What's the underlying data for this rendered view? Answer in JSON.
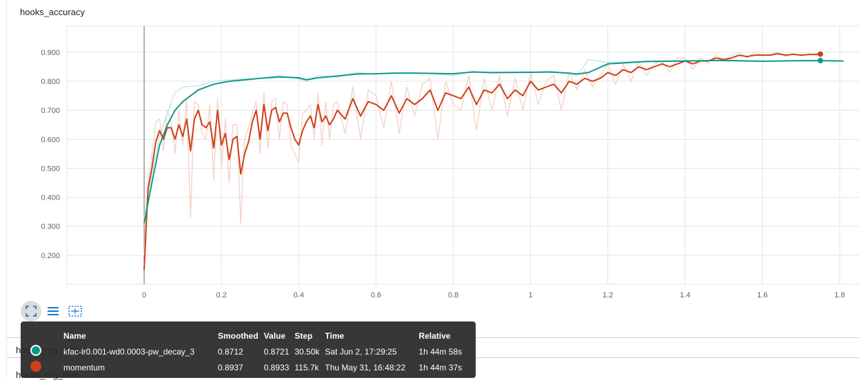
{
  "card": {
    "title": "hooks_accuracy"
  },
  "colors": {
    "series_a": "#0d9a89",
    "series_a_raw": "#c5e8e2",
    "series_b": "#cf3f1a",
    "series_b_raw": "#f3d6cc",
    "grid": "#e3e3e3",
    "axis": "#7f7f7f"
  },
  "chart_data": {
    "type": "line",
    "x_ticks": [
      "0",
      "0.2",
      "0.4",
      "0.6",
      "0.8",
      "1",
      "1.2",
      "1.4",
      "1.6",
      "1.8"
    ],
    "y_ticks": [
      "0.200",
      "0.300",
      "0.400",
      "0.500",
      "0.600",
      "0.700",
      "0.800",
      "0.900"
    ],
    "xlim": [
      -0.2,
      1.85
    ],
    "ylim": [
      0.1,
      0.99
    ],
    "grid": true,
    "series": [
      {
        "name": "kfac-lr0.001-wd0.0003-pw_decay_3",
        "x": [
          0,
          0.02,
          0.04,
          0.06,
          0.08,
          0.1,
          0.14,
          0.18,
          0.22,
          0.3,
          0.35,
          0.4,
          0.42,
          0.45,
          0.5,
          0.55,
          0.6,
          0.65,
          0.7,
          0.8,
          0.85,
          0.9,
          1.0,
          1.05,
          1.1,
          1.12,
          1.15,
          1.2,
          1.3,
          1.4,
          1.5,
          1.6,
          1.7,
          1.75,
          1.81
        ],
        "y": [
          0.31,
          0.45,
          0.58,
          0.65,
          0.7,
          0.73,
          0.77,
          0.79,
          0.8,
          0.81,
          0.815,
          0.812,
          0.805,
          0.812,
          0.818,
          0.825,
          0.826,
          0.828,
          0.828,
          0.826,
          0.832,
          0.83,
          0.831,
          0.832,
          0.828,
          0.825,
          0.83,
          0.86,
          0.868,
          0.87,
          0.872,
          0.869,
          0.871,
          0.8712,
          0.87
        ],
        "raw_y": [
          0.33,
          0.48,
          0.61,
          0.69,
          0.76,
          0.78,
          0.785,
          0.8,
          0.805,
          0.81,
          0.82,
          0.808,
          0.8,
          0.82,
          0.815,
          0.83,
          0.825,
          0.83,
          0.83,
          0.82,
          0.835,
          0.828,
          0.83,
          0.835,
          0.826,
          0.82,
          0.875,
          0.865,
          0.87,
          0.872,
          0.87,
          0.868,
          0.872,
          0.8721,
          0.87
        ],
        "smoothed": 0.8712,
        "value": 0.8721,
        "step": "30.50k",
        "time": "Sat Jun 2, 17:29:25",
        "relative": "1h 44m 58s"
      },
      {
        "name": "momentum",
        "x": [
          0,
          0.01,
          0.02,
          0.03,
          0.04,
          0.05,
          0.06,
          0.07,
          0.08,
          0.09,
          0.1,
          0.11,
          0.12,
          0.13,
          0.14,
          0.15,
          0.16,
          0.17,
          0.18,
          0.19,
          0.2,
          0.21,
          0.22,
          0.23,
          0.24,
          0.25,
          0.26,
          0.27,
          0.28,
          0.29,
          0.3,
          0.31,
          0.32,
          0.33,
          0.34,
          0.35,
          0.36,
          0.37,
          0.38,
          0.39,
          0.4,
          0.41,
          0.42,
          0.43,
          0.44,
          0.45,
          0.46,
          0.47,
          0.48,
          0.49,
          0.5,
          0.52,
          0.54,
          0.56,
          0.58,
          0.6,
          0.62,
          0.64,
          0.66,
          0.68,
          0.7,
          0.72,
          0.74,
          0.76,
          0.78,
          0.8,
          0.82,
          0.84,
          0.86,
          0.88,
          0.9,
          0.92,
          0.94,
          0.96,
          0.98,
          1.0,
          1.02,
          1.04,
          1.06,
          1.08,
          1.1,
          1.12,
          1.14,
          1.16,
          1.18,
          1.2,
          1.22,
          1.24,
          1.26,
          1.28,
          1.3,
          1.32,
          1.34,
          1.36,
          1.38,
          1.4,
          1.42,
          1.44,
          1.46,
          1.48,
          1.5,
          1.52,
          1.54,
          1.56,
          1.58,
          1.6,
          1.62,
          1.64,
          1.66,
          1.68,
          1.7,
          1.72,
          1.74,
          1.75
        ],
        "y": [
          0.15,
          0.43,
          0.5,
          0.59,
          0.63,
          0.6,
          0.64,
          0.64,
          0.6,
          0.65,
          0.61,
          0.67,
          0.56,
          0.67,
          0.7,
          0.65,
          0.64,
          0.66,
          0.57,
          0.7,
          0.58,
          0.62,
          0.53,
          0.6,
          0.61,
          0.48,
          0.55,
          0.59,
          0.66,
          0.7,
          0.6,
          0.72,
          0.63,
          0.7,
          0.71,
          0.66,
          0.69,
          0.69,
          0.64,
          0.6,
          0.58,
          0.63,
          0.66,
          0.68,
          0.64,
          0.72,
          0.66,
          0.68,
          0.65,
          0.67,
          0.7,
          0.67,
          0.74,
          0.68,
          0.73,
          0.72,
          0.7,
          0.75,
          0.69,
          0.74,
          0.72,
          0.74,
          0.77,
          0.7,
          0.76,
          0.75,
          0.74,
          0.78,
          0.72,
          0.77,
          0.76,
          0.79,
          0.74,
          0.77,
          0.75,
          0.8,
          0.77,
          0.78,
          0.79,
          0.76,
          0.8,
          0.79,
          0.81,
          0.8,
          0.81,
          0.83,
          0.82,
          0.84,
          0.83,
          0.85,
          0.84,
          0.85,
          0.86,
          0.85,
          0.86,
          0.87,
          0.86,
          0.87,
          0.87,
          0.88,
          0.875,
          0.88,
          0.89,
          0.885,
          0.89,
          0.89,
          0.89,
          0.895,
          0.89,
          0.893,
          0.89,
          0.892,
          0.893,
          0.8937
        ],
        "raw_y": [
          0.2,
          0.45,
          0.54,
          0.66,
          0.67,
          0.56,
          0.7,
          0.66,
          0.55,
          0.7,
          0.58,
          0.74,
          0.33,
          0.73,
          0.72,
          0.62,
          0.6,
          0.72,
          0.46,
          0.74,
          0.5,
          0.67,
          0.45,
          0.65,
          0.65,
          0.31,
          0.6,
          0.64,
          0.69,
          0.73,
          0.55,
          0.76,
          0.57,
          0.73,
          0.74,
          0.6,
          0.73,
          0.72,
          0.58,
          0.55,
          0.52,
          0.69,
          0.7,
          0.72,
          0.6,
          0.76,
          0.58,
          0.73,
          0.6,
          0.72,
          0.73,
          0.62,
          0.78,
          0.6,
          0.77,
          0.75,
          0.64,
          0.8,
          0.62,
          0.78,
          0.68,
          0.79,
          0.81,
          0.6,
          0.8,
          0.72,
          0.7,
          0.82,
          0.63,
          0.81,
          0.7,
          0.82,
          0.68,
          0.81,
          0.7,
          0.83,
          0.72,
          0.8,
          0.82,
          0.7,
          0.83,
          0.77,
          0.84,
          0.78,
          0.82,
          0.86,
          0.79,
          0.86,
          0.8,
          0.87,
          0.82,
          0.86,
          0.87,
          0.83,
          0.88,
          0.88,
          0.84,
          0.88,
          0.86,
          0.89,
          0.87,
          0.89,
          0.9,
          0.88,
          0.9,
          0.89,
          0.89,
          0.9,
          0.885,
          0.895,
          0.888,
          0.895,
          0.89,
          0.8933
        ],
        "smoothed": 0.8937,
        "value": 0.8933,
        "step": "115.7k",
        "time": "Thu May 31, 16:48:22",
        "relative": "1h 44m 37s"
      }
    ]
  },
  "tooltip": {
    "headers": {
      "name": "Name",
      "smoothed": "Smoothed",
      "value": "Value",
      "step": "Step",
      "time": "Time",
      "relative": "Relative"
    },
    "rows": [
      {
        "name": "kfac-lr0.001-wd0.0003-pw_decay_3",
        "smoothed": "0.8712",
        "value": "0.8721",
        "step": "30.50k",
        "time": "Sat Jun 2, 17:29:25",
        "relative": "1h 44m 58s"
      },
      {
        "name": "momentum",
        "smoothed": "0.8937",
        "value": "0.8933",
        "step": "115.7k",
        "time": "Thu May 31, 16:48:22",
        "relative": "1h 44m 37s"
      }
    ]
  },
  "toolbar": {
    "icons": [
      "fullscreen-icon",
      "data-table-icon",
      "fit-domain-icon"
    ]
  },
  "next_cards": {
    "title_1": "hooks_reg_loss",
    "title_2": "hooks_reg_loss"
  }
}
